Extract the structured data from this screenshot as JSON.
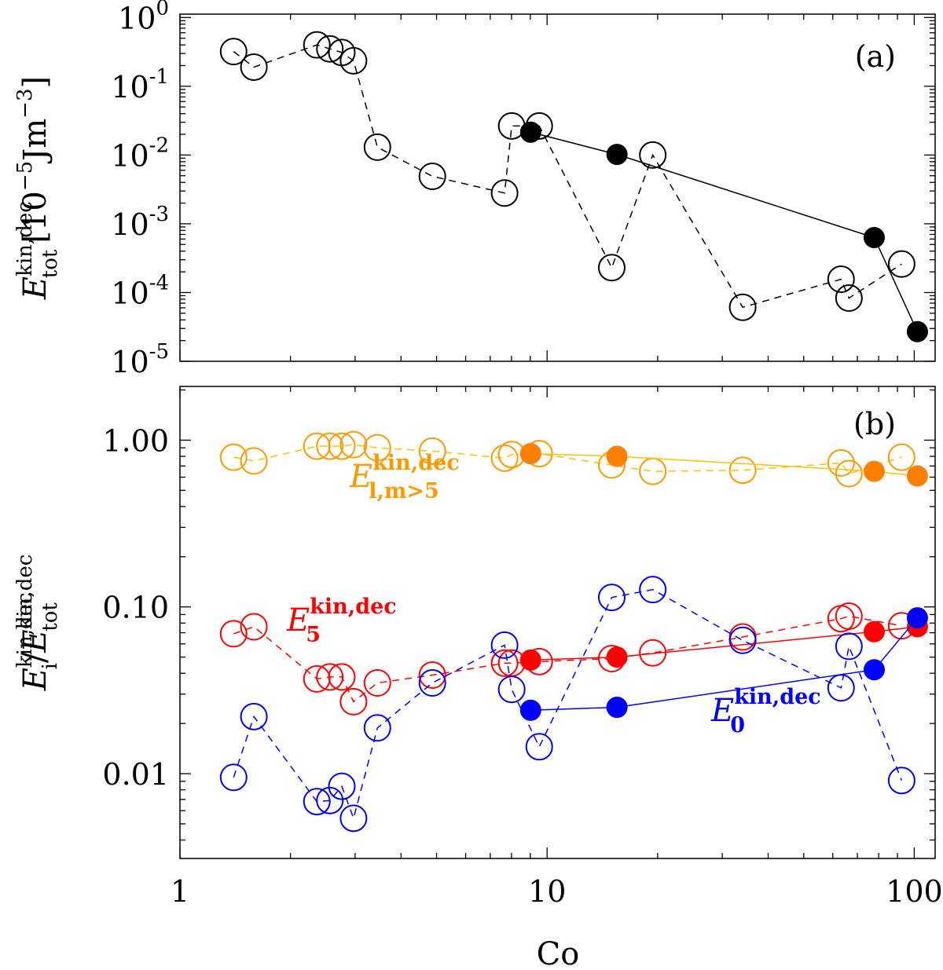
{
  "chart_data": [
    {
      "panel_label": "(a)",
      "type": "line",
      "xscale": "log",
      "yscale": "log",
      "xlim": [
        1,
        114
      ],
      "ylim": [
        1e-05,
        1.12
      ],
      "yticks": [
        {
          "base": "10",
          "exp": "0",
          "value": 1
        },
        {
          "base": "10",
          "exp": "-1",
          "value": 0.1
        },
        {
          "base": "10",
          "exp": "-2",
          "value": 0.01
        },
        {
          "base": "10",
          "exp": "-3",
          "value": 0.001
        },
        {
          "base": "10",
          "exp": "-4",
          "value": 0.0001
        },
        {
          "base": "10",
          "exp": "-5",
          "value": 1e-05
        }
      ],
      "ylabel": {
        "main": "E",
        "sup": "kin,dec",
        "sub": "tot",
        "unit": "[10",
        "unit_exp": "−5",
        "unit_rest": "Jm",
        "unit_exp2": "−3",
        "unit_close": "]"
      },
      "series": [
        {
          "style": "open-dashed",
          "color": "#000000",
          "x": [
            1.4,
            1.59,
            2.36,
            2.56,
            2.76,
            2.97,
            3.45,
            4.87,
            7.66,
            8.01,
            9.52,
            15.0,
            19.4,
            34.1,
            63.2,
            66.4,
            92.4
          ],
          "y": [
            0.32,
            0.19,
            0.4,
            0.35,
            0.31,
            0.235,
            0.013,
            0.0049,
            0.0028,
            0.0265,
            0.0265,
            0.00023,
            0.01,
            6.1e-05,
            0.000156,
            8.3e-05,
            0.00026
          ]
        },
        {
          "style": "filled-solid",
          "color": "#000000",
          "x": [
            9.02,
            15.5,
            77.8,
            102
          ],
          "y": [
            0.0215,
            0.0102,
            0.00063,
            2.7e-05
          ]
        }
      ]
    },
    {
      "panel_label": "(b)",
      "type": "line",
      "xscale": "log",
      "yscale": "log",
      "xlim": [
        1,
        114
      ],
      "ylim": [
        0.0031,
        2.1
      ],
      "yticks": [
        {
          "label": "1.00",
          "value": 1
        },
        {
          "label": "0.10",
          "value": 0.1
        },
        {
          "label": "0.01",
          "value": 0.01
        }
      ],
      "xticks": [
        {
          "label": "1",
          "value": 1
        },
        {
          "label": "10",
          "value": 10
        },
        {
          "label": "100",
          "value": 100
        }
      ],
      "xlabel": "Co",
      "ylabel": {
        "main": "E",
        "sup": "kin,dec",
        "sub": "i",
        "slash": "/",
        "main2": "E",
        "sup2": "kin,dec",
        "sub2": "tot"
      },
      "series": [
        {
          "style": "open-dashed",
          "color": "#FF9900",
          "line_color": "#FFC000",
          "x": [
            1.4,
            1.59,
            2.36,
            2.56,
            2.76,
            2.97,
            3.45,
            4.87,
            7.66,
            8.01,
            9.52,
            15.0,
            19.4,
            34.1,
            63.2,
            66.4,
            92.4
          ],
          "y": [
            0.79,
            0.75,
            0.92,
            0.92,
            0.92,
            0.94,
            0.9,
            0.86,
            0.78,
            0.82,
            0.83,
            0.71,
            0.65,
            0.66,
            0.73,
            0.63,
            0.79
          ]
        },
        {
          "style": "filled-solid",
          "color": "#FF8000",
          "line_color": "#FFC000",
          "x": [
            9.02,
            15.5,
            77.8,
            102
          ],
          "y": [
            0.83,
            0.8,
            0.65,
            0.61
          ]
        },
        {
          "style": "open-dashed",
          "color": "#FF0000",
          "line_color": "#FF0000",
          "x": [
            1.4,
            1.59,
            2.36,
            2.56,
            2.76,
            2.97,
            3.45,
            4.87,
            7.66,
            8.01,
            9.52,
            15.0,
            19.4,
            34.1,
            63.2,
            66.4,
            92.4
          ],
          "y": [
            0.069,
            0.076,
            0.037,
            0.038,
            0.038,
            0.027,
            0.035,
            0.039,
            0.046,
            0.046,
            0.047,
            0.049,
            0.053,
            0.066,
            0.085,
            0.088,
            0.077
          ]
        },
        {
          "style": "filled-solid",
          "color": "#FF0000",
          "line_color": "#FF0000",
          "x": [
            9.02,
            15.5,
            77.8,
            102
          ],
          "y": [
            0.048,
            0.05,
            0.071,
            0.076
          ]
        },
        {
          "style": "open-dashed",
          "color": "#0000FF",
          "line_color": "#0000FF",
          "x": [
            1.4,
            1.59,
            2.36,
            2.56,
            2.76,
            2.97,
            3.45,
            4.87,
            7.66,
            8.01,
            9.52,
            15.0,
            19.4,
            34.1,
            63.2,
            66.4,
            92.4
          ],
          "y": [
            0.0095,
            0.022,
            0.0068,
            0.0069,
            0.0084,
            0.0054,
            0.0188,
            0.035,
            0.059,
            0.032,
            0.0145,
            0.114,
            0.127,
            0.063,
            0.0327,
            0.058,
            0.0091
          ]
        },
        {
          "style": "filled-solid",
          "color": "#0000FF",
          "line_color": "#0000FF",
          "x": [
            9.02,
            15.5,
            77.8,
            102
          ],
          "y": [
            0.024,
            0.025,
            0.042,
            0.086
          ]
        }
      ],
      "annotations": [
        {
          "main": "E",
          "sup": "kin,dec",
          "sub": "l,m>5",
          "color": "#FF9900"
        },
        {
          "main": "E",
          "sup": "kin,dec",
          "sub": "5",
          "color": "#FF0000"
        },
        {
          "main": "E",
          "sup": "kin,dec",
          "sub": "0",
          "color": "#0000FF"
        }
      ]
    }
  ]
}
